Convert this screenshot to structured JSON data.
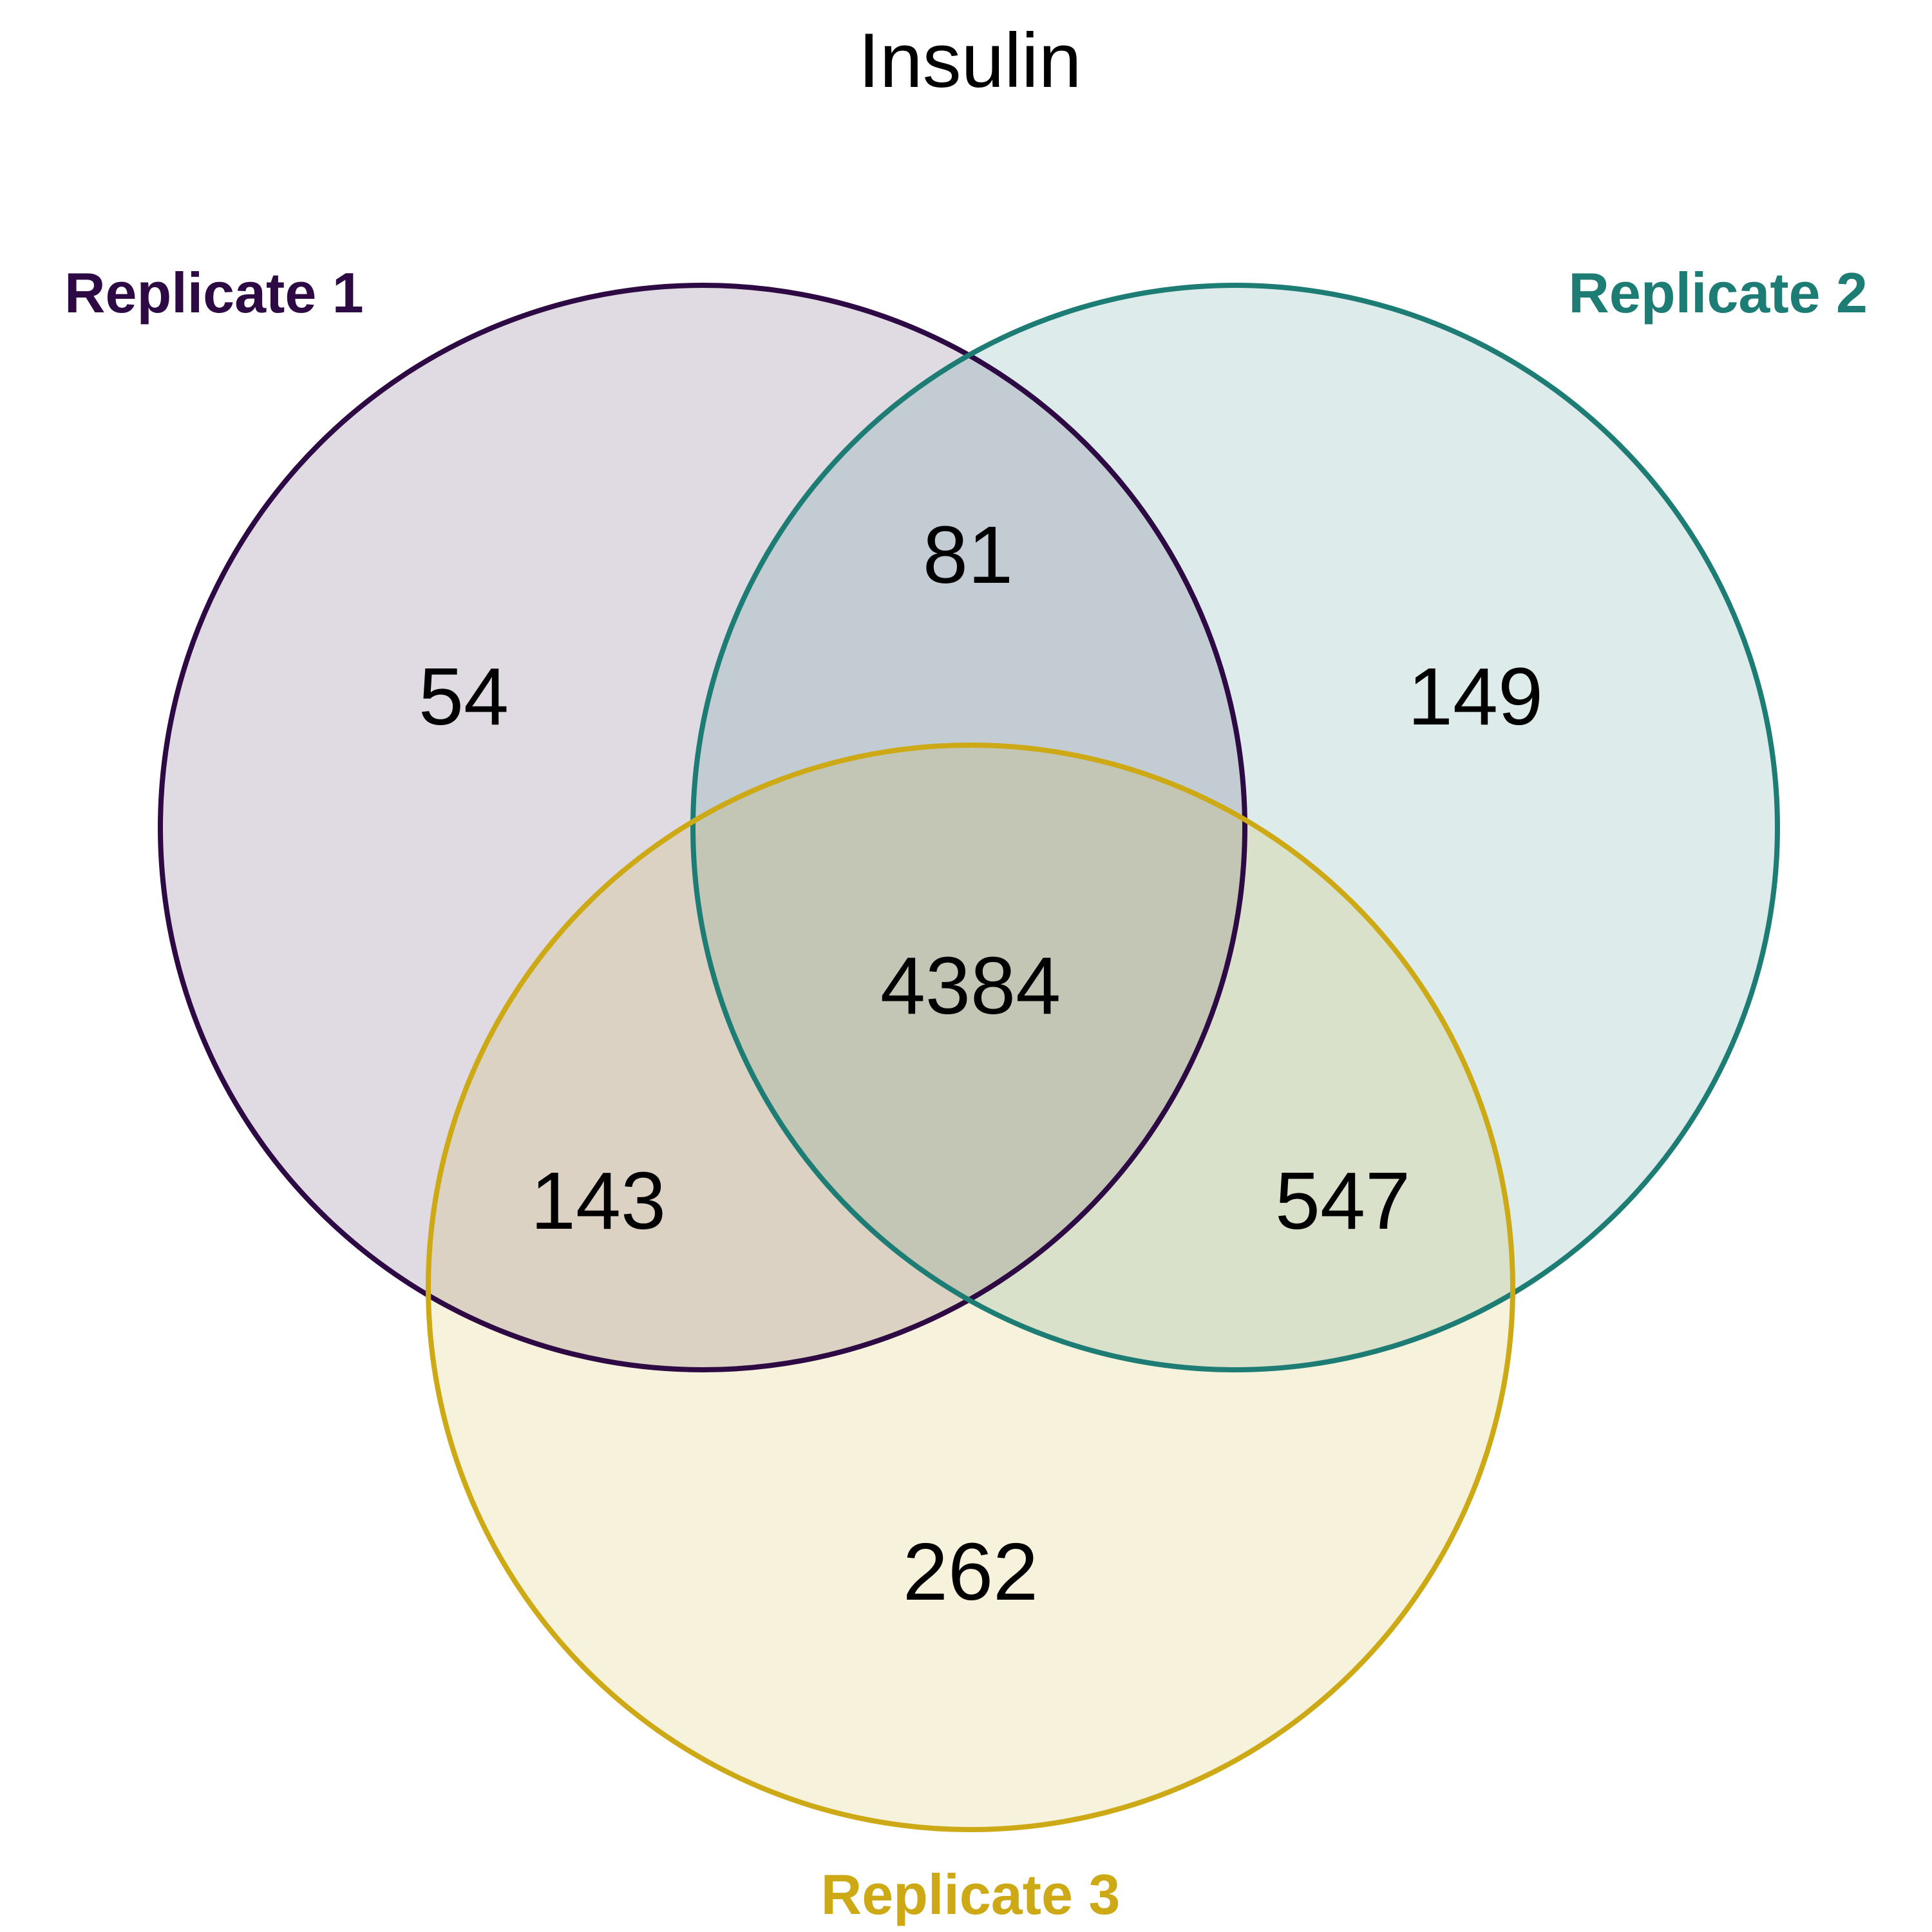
{
  "title": "Insulin",
  "sets": [
    {
      "name": "Replicate 1",
      "color": "#2D0A43"
    },
    {
      "name": "Replicate 2",
      "color": "#1D7D74"
    },
    {
      "name": "Replicate 3",
      "color": "#CCA915"
    }
  ],
  "regions": {
    "only_1": "54",
    "only_2": "149",
    "only_3": "262",
    "r1_r2": "81",
    "r1_r3": "143",
    "r2_r3": "547",
    "all": "4384"
  }
}
